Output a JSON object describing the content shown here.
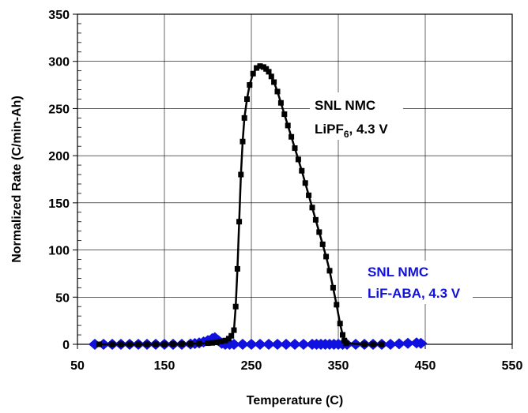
{
  "chart_data": {
    "type": "scatter",
    "title": "",
    "xlabel": "Temperature (C)",
    "ylabel": "Normalized Rate (C/min-Ah)",
    "xlim": [
      50,
      550
    ],
    "ylim": [
      0,
      350
    ],
    "x_ticks": [
      50,
      150,
      250,
      350,
      450,
      550
    ],
    "y_ticks": [
      0,
      50,
      100,
      150,
      200,
      250,
      300,
      350
    ],
    "x_tick_labels": [
      "50",
      "150",
      "250",
      "350",
      "450",
      "550"
    ],
    "y_tick_labels": [
      "0",
      "50",
      "100",
      "150",
      "200",
      "250",
      "300",
      "350"
    ],
    "grid": true,
    "series": [
      {
        "name_line1": "SNL NMC",
        "name_line2_main": "LiPF",
        "name_line2_sub": "6",
        "name_line2_rest": ", 4.3 V",
        "color": "#000000",
        "marker": "square",
        "x": [
          75,
          90,
          100,
          110,
          120,
          130,
          140,
          150,
          160,
          170,
          180,
          190,
          200,
          205,
          210,
          215,
          220,
          224,
          227,
          230,
          232,
          234,
          236,
          238,
          240,
          242,
          245,
          248,
          252,
          256,
          260,
          264,
          267,
          270,
          273,
          276,
          280,
          284,
          288,
          292,
          296,
          300,
          304,
          308,
          312,
          316,
          320,
          324,
          328,
          332,
          336,
          340,
          344,
          348,
          352,
          355,
          357,
          359,
          380,
          390,
          400
        ],
        "y": [
          0,
          0,
          0,
          0,
          0,
          0,
          0,
          0,
          0.2,
          0.3,
          0.5,
          0.8,
          1.2,
          1.5,
          2,
          3,
          4,
          6,
          9,
          15,
          40,
          80,
          130,
          180,
          215,
          240,
          260,
          275,
          287,
          293,
          295,
          294,
          292,
          289,
          284,
          278,
          268,
          256,
          244,
          232,
          220,
          208,
          196,
          184,
          171,
          158,
          145,
          132,
          119,
          106,
          93,
          78,
          60,
          42,
          22,
          10,
          4,
          1,
          0,
          0,
          0
        ]
      },
      {
        "name_line1": "SNL NMC",
        "name_line2": "LiF-ABA, 4.3 V",
        "color": "#1010e0",
        "marker": "diamond",
        "x": [
          70,
          80,
          90,
          100,
          110,
          120,
          130,
          140,
          150,
          160,
          170,
          180,
          185,
          190,
          195,
          200,
          205,
          208,
          212,
          216,
          220,
          225,
          230,
          240,
          250,
          260,
          270,
          280,
          290,
          300,
          310,
          320,
          325,
          330,
          335,
          340,
          345,
          350,
          355,
          360,
          370,
          380,
          390,
          400,
          410,
          420,
          430,
          440,
          445
        ],
        "y": [
          0,
          0,
          0,
          0,
          0,
          0,
          0,
          0,
          0,
          0,
          0,
          0.3,
          0.8,
          1.5,
          2.5,
          4,
          6,
          7,
          4,
          1,
          0,
          0,
          0,
          0,
          0,
          0,
          0,
          0,
          0,
          0,
          0,
          0,
          0,
          0,
          0,
          0,
          0,
          0,
          0,
          0,
          0,
          0,
          0,
          0,
          0,
          0.5,
          1,
          1.5,
          1
        ]
      }
    ]
  }
}
